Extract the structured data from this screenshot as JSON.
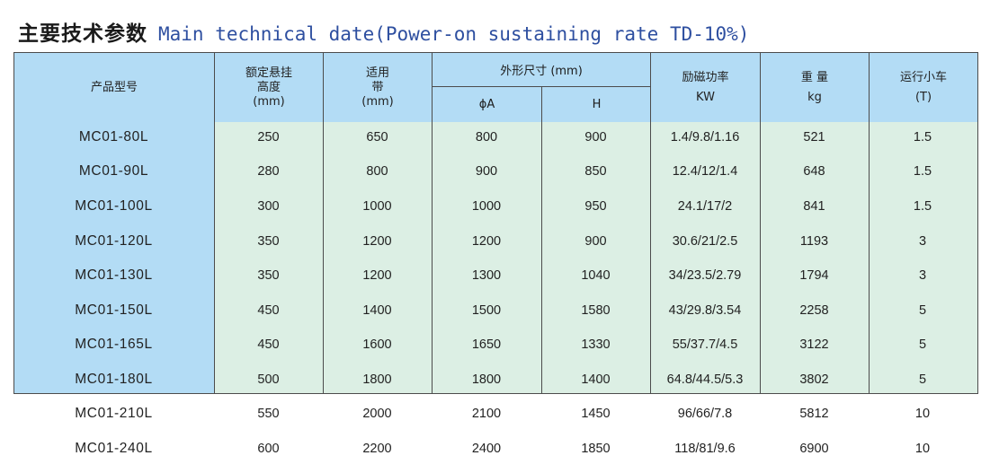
{
  "title": {
    "cn": "主要技术参数",
    "en": "Main technical date(Power-on sustaining rate TD-10%)"
  },
  "header": {
    "model": "产品型号",
    "height": [
      "额定悬挂",
      "高度",
      "(mm)"
    ],
    "belt": [
      "适用",
      "带",
      "(mm)"
    ],
    "dims_title": "外形尺寸 (mm)",
    "dims_a": "ϕA",
    "dims_h": "H",
    "power": [
      "励磁功率",
      "KW"
    ],
    "weight": [
      "重 量",
      "kg"
    ],
    "trolley": [
      "运行小车",
      "(T)"
    ]
  },
  "rows": [
    [
      "MC01-80L",
      "250",
      "650",
      "800",
      "900",
      "1.4/9.8/1.16",
      "521",
      "1.5"
    ],
    [
      "MC01-90L",
      "280",
      "800",
      "900",
      "850",
      "12.4/12/1.4",
      "648",
      "1.5"
    ],
    [
      "MC01-100L",
      "300",
      "1000",
      "1000",
      "950",
      "24.1/17/2",
      "841",
      "1.5"
    ],
    [
      "MC01-120L",
      "350",
      "1200",
      "1200",
      "900",
      "30.6/21/2.5",
      "1193",
      "3"
    ],
    [
      "MC01-130L",
      "350",
      "1200",
      "1300",
      "1040",
      "34/23.5/2.79",
      "1794",
      "3"
    ],
    [
      "MC01-150L",
      "450",
      "1400",
      "1500",
      "1580",
      "43/29.8/3.54",
      "2258",
      "5"
    ],
    [
      "MC01-165L",
      "450",
      "1600",
      "1650",
      "1330",
      "55/37.7/4.5",
      "3122",
      "5"
    ],
    [
      "MC01-180L",
      "500",
      "1800",
      "1800",
      "1400",
      "64.8/44.5/5.3",
      "3802",
      "5"
    ],
    [
      "MC01-210L",
      "550",
      "2000",
      "2100",
      "1450",
      "96/66/7.8",
      "5812",
      "10"
    ],
    [
      "MC01-240L",
      "600",
      "2200",
      "2400",
      "1850",
      "118/81/9.6",
      "6900",
      "10"
    ]
  ],
  "colors": {
    "header_bg": "#b3dcf5",
    "body_bg": "#dcefe4",
    "title_en": "#2e4fa0"
  }
}
